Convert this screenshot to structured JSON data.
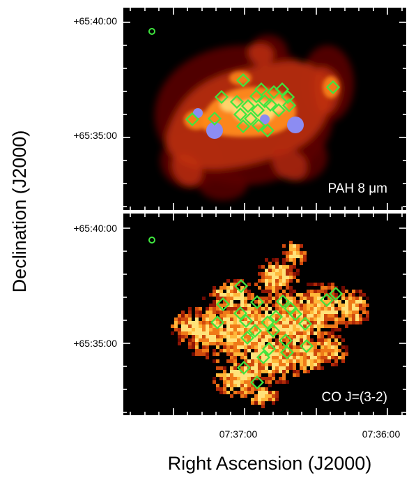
{
  "figure": {
    "x_axis_title": "Right Ascension (J2000)",
    "y_axis_title": "Declination (J2000)",
    "colors": {
      "background": "#000000",
      "frame": "#ffffff",
      "marker_outline": "#3fe63f",
      "marker_fill": "#a9a9ff",
      "circle_fill": "#8c8cf2",
      "emission_low": "#5a0700",
      "emission_mid": "#c0300a",
      "emission_high": "#ff8a1a",
      "emission_peak": "#ffe27a"
    }
  },
  "panels": [
    {
      "id": "pah",
      "label": "PAH 8 μm",
      "dec_tick_labels": [
        "+65:40:00",
        "+65:35:00"
      ],
      "ra_tick_labels": [],
      "emission_style": "smooth",
      "markers": "squares and filled circles"
    },
    {
      "id": "co",
      "label": "CO J=(3-2)",
      "dec_tick_labels": [
        "+65:40:00",
        "+65:35:00"
      ],
      "ra_tick_labels": [
        "07:37:00",
        "07:36:00"
      ],
      "emission_style": "pixelated",
      "markers": "squares"
    }
  ]
}
